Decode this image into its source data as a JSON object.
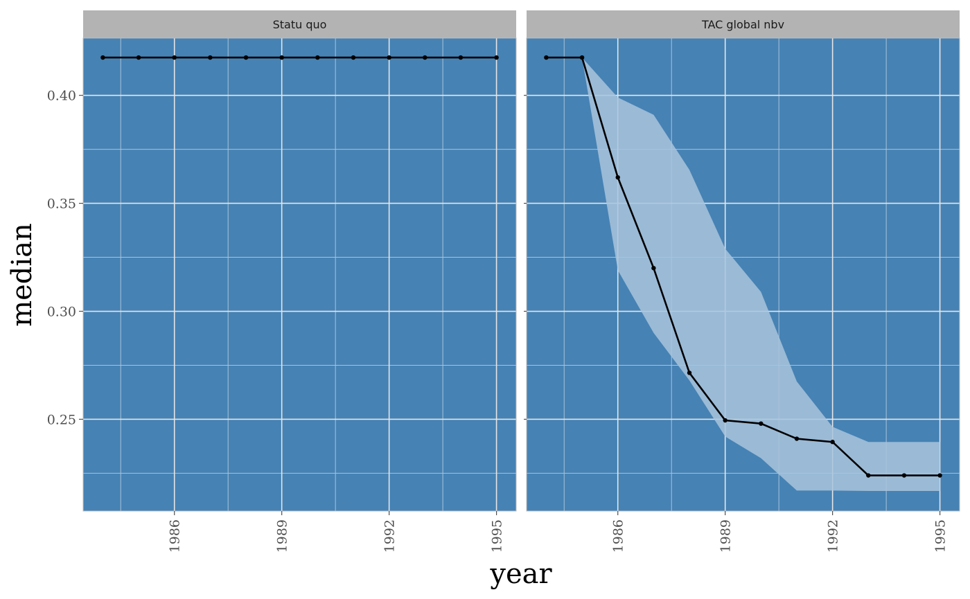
{
  "chart_data": {
    "type": "line",
    "xlabel": "year",
    "ylabel": "median",
    "x_ticks": [
      1986,
      1989,
      1992,
      1995
    ],
    "y_ticks": [
      "0.25",
      "0.30",
      "0.35",
      "0.40"
    ],
    "x_tick_labels": [
      "1986",
      "1989",
      "1992",
      "1995"
    ],
    "xlim": [
      1983.45,
      1995.55
    ],
    "ylim": [
      0.2075,
      0.4265
    ],
    "grid": true,
    "colors": {
      "panel_bg": "#4682b4",
      "strip_bg": "#b3b3b3",
      "grid_major": "#e6e6e6",
      "grid_minor": "#a9c4dc",
      "line": "#000000",
      "ribbon": "#a9c4dc"
    },
    "panels": [
      {
        "strip": "Statu quo",
        "x": [
          1984,
          1985,
          1986,
          1987,
          1988,
          1989,
          1990,
          1991,
          1992,
          1993,
          1994,
          1995
        ],
        "median": [
          0.4175,
          0.4175,
          0.4175,
          0.4175,
          0.4175,
          0.4175,
          0.4175,
          0.4175,
          0.4175,
          0.4175,
          0.4175,
          0.4175
        ]
      },
      {
        "strip": "TAC global nbv",
        "x": [
          1984,
          1985,
          1986,
          1987,
          1988,
          1989,
          1990,
          1991,
          1992,
          1993,
          1994,
          1995
        ],
        "median": [
          0.4175,
          0.4175,
          0.362,
          0.32,
          0.2715,
          0.2495,
          0.248,
          0.241,
          0.2395,
          0.224,
          0.224,
          0.224
        ],
        "lower": [
          0.4175,
          0.4175,
          0.319,
          0.29,
          0.268,
          0.242,
          0.232,
          0.217,
          0.217,
          0.2168,
          0.2168,
          0.2168
        ],
        "upper": [
          0.4175,
          0.4175,
          0.399,
          0.391,
          0.3655,
          0.329,
          0.309,
          0.2675,
          0.2465,
          0.2395,
          0.2395,
          0.2395
        ]
      }
    ]
  }
}
